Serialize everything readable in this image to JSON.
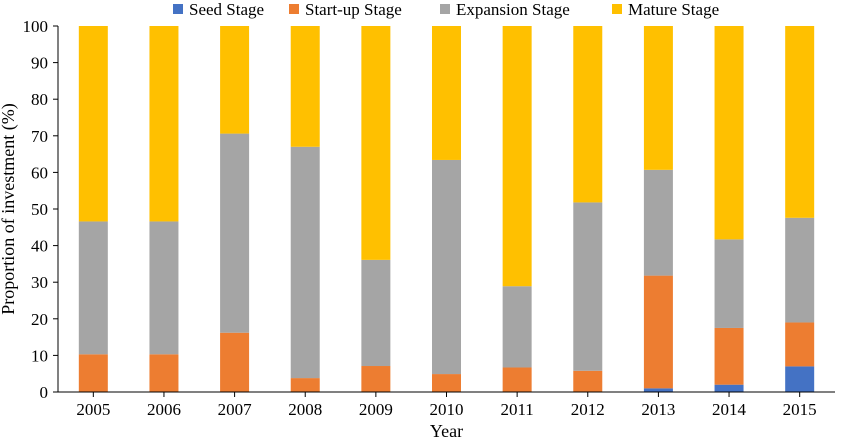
{
  "chart_data": {
    "type": "bar",
    "stacked": true,
    "xlabel": "Year",
    "ylabel": "Proportion of investment (%)",
    "ylim": [
      0,
      100
    ],
    "yticks": [
      0,
      10,
      20,
      30,
      40,
      50,
      60,
      70,
      80,
      90,
      100
    ],
    "grid": false,
    "legend_position": "top",
    "categories": [
      "2005",
      "2006",
      "2007",
      "2008",
      "2009",
      "2010",
      "2011",
      "2012",
      "2013",
      "2014",
      "2015"
    ],
    "series": [
      {
        "name": "Seed Stage",
        "color": "#4472c4",
        "values": [
          0,
          0,
          0,
          0,
          0,
          0,
          0,
          0,
          1,
          2,
          7
        ]
      },
      {
        "name": "Start-up Stage",
        "color": "#ed7d31",
        "values": [
          10.3,
          10.3,
          16.2,
          3.8,
          7.1,
          4.9,
          6.7,
          5.8,
          30.8,
          15.5,
          12.0
        ]
      },
      {
        "name": "Expansion Stage",
        "color": "#a5a5a5",
        "values": [
          36.3,
          36.3,
          54.4,
          63.2,
          29.0,
          58.5,
          22.2,
          46.0,
          28.9,
          24.2,
          28.6
        ]
      },
      {
        "name": "Mature Stage",
        "color": "#ffc000",
        "values": [
          53.4,
          53.4,
          29.4,
          33.0,
          63.9,
          36.6,
          71.1,
          48.2,
          39.3,
          58.3,
          52.4
        ]
      }
    ]
  }
}
